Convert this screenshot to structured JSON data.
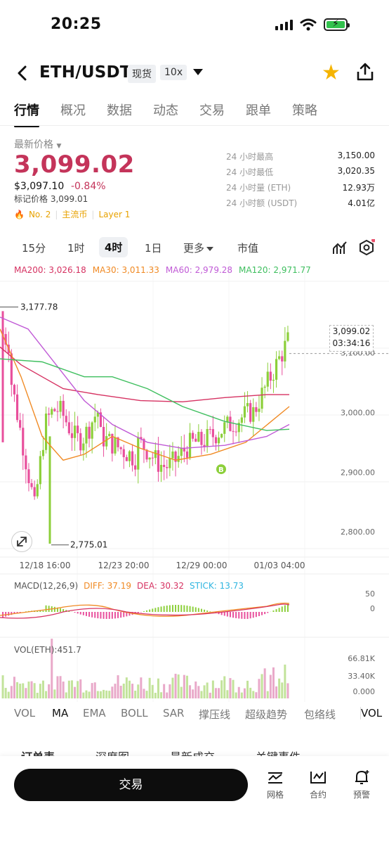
{
  "status_bar": {
    "time": "20:25"
  },
  "header": {
    "pair": "ETH/USDT",
    "market_tag": "现货",
    "leverage_tag": "10x"
  },
  "tabs": [
    "行情",
    "概况",
    "数据",
    "动态",
    "交易",
    "跟单",
    "策略"
  ],
  "price": {
    "label": "最新价格",
    "last": "3,099.02",
    "usd": "$3,097.10",
    "change": "-0.84%",
    "mark": "标记价格 3,099.01",
    "rank": "No. 2",
    "tag1": "主流币",
    "tag2": "Layer 1"
  },
  "stats": [
    {
      "k": "24 小时最高",
      "v": "3,150.00"
    },
    {
      "k": "24 小时最低",
      "v": "3,020.35"
    },
    {
      "k": "24 小时量 (ETH)",
      "v": "12.93万"
    },
    {
      "k": "24 小时额 (USDT)",
      "v": "4.01亿"
    }
  ],
  "intervals": [
    "15分",
    "1时",
    "4时",
    "1日",
    "更多",
    "市值"
  ],
  "ma_legend": [
    {
      "text": "MA200: 3,026.18",
      "color": "#d63262"
    },
    {
      "text": "MA30: 3,011.33",
      "color": "#f08a24"
    },
    {
      "text": "MA60: 2,979.28",
      "color": "#c05ad6"
    },
    {
      "text": "MA120: 2,971.77",
      "color": "#3fbf5f"
    }
  ],
  "price_box": {
    "price": "3,099.02",
    "countdown": "03:34:16"
  },
  "chart_labels": {
    "high_marker": "3,177.78",
    "low_marker": "2,775.01",
    "b_marker": "B",
    "y_axis": [
      "3,100.00",
      "3,000.00",
      "2,900.00",
      "2,800.00"
    ],
    "x_axis": [
      "12/18 16:00",
      "12/23 20:00",
      "12/29 00:00",
      "01/03 04:00"
    ]
  },
  "macd": {
    "legend": [
      {
        "text": "MACD(12,26,9)",
        "color": "#555555"
      },
      {
        "text": "DIFF: 37.19",
        "color": "#f08a24"
      },
      {
        "text": "DEA: 30.32",
        "color": "#d63262"
      },
      {
        "text": "STICK: 13.73",
        "color": "#2fb5e0"
      }
    ],
    "axis": [
      "50",
      "0"
    ]
  },
  "volume": {
    "legend": "VOL(ETH):451.7",
    "axis": [
      "66.81K",
      "33.40K",
      "0.000"
    ]
  },
  "indicators": [
    "VOL",
    "MA",
    "EMA",
    "BOLL",
    "SAR",
    "撑压线",
    "超级趋势",
    "包络线",
    "VOL"
  ],
  "subtabs": [
    "订单表",
    "深度图",
    "最新成交",
    "关键事件"
  ],
  "bottom": {
    "trade": "交易",
    "tools": [
      "网格",
      "合约",
      "预警"
    ]
  },
  "colors": {
    "up": "#8ccf3a",
    "down": "#e84f9c",
    "price_red": "#c4345a"
  }
}
